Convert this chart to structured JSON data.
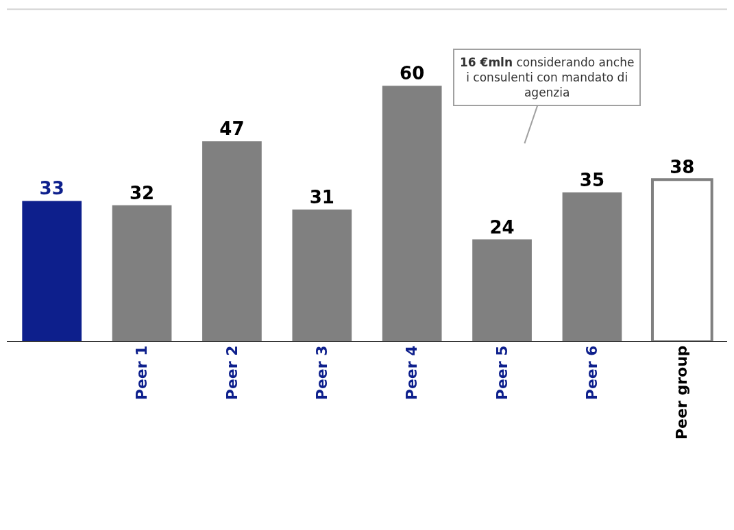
{
  "chart_data": {
    "type": "bar",
    "categories": [
      null,
      "Peer 1",
      "Peer 2",
      "Peer 3",
      "Peer 4",
      "Peer 5",
      "Peer 6",
      "Peer group"
    ],
    "values": [
      33,
      32,
      47,
      31,
      60,
      24,
      35,
      38
    ],
    "colors": [
      "#0d1f8c",
      "#808080",
      "#808080",
      "#808080",
      "#808080",
      "#808080",
      "#808080",
      "#ffffff"
    ],
    "data_labels": true,
    "annotations": [
      "16 €mln considerando anche i consulenti con mandato di agenzia"
    ]
  }
}
